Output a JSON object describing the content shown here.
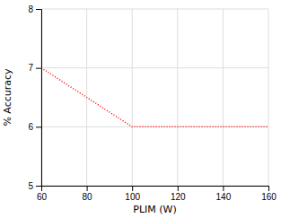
{
  "chart_data": {
    "type": "line",
    "xlabel": "PLIM (W)",
    "ylabel": "% Accuracy",
    "x": [
      60,
      100,
      160
    ],
    "series": [
      {
        "values": [
          7,
          6,
          6
        ],
        "color": "#ff0000",
        "line_style": "dotted"
      }
    ],
    "xlim": [
      60,
      160
    ],
    "ylim": [
      5,
      8
    ],
    "xticks": [
      60,
      80,
      100,
      120,
      140,
      160
    ],
    "yticks": [
      5,
      6,
      7,
      8
    ],
    "grid": true
  }
}
